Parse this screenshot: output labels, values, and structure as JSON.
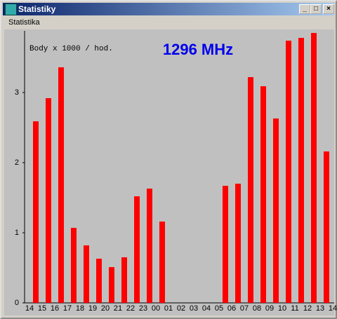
{
  "window": {
    "title": "Statistiky",
    "menu": [
      "Statistika"
    ]
  },
  "chart_data": {
    "type": "bar",
    "annotations": [
      "Body x 1000 / hod.",
      "1296 MHz"
    ],
    "categories": [
      "14",
      "15",
      "16",
      "17",
      "18",
      "19",
      "20",
      "21",
      "22",
      "23",
      "00",
      "01",
      "02",
      "03",
      "04",
      "05",
      "06",
      "07",
      "08",
      "09",
      "10",
      "11",
      "12",
      "13",
      "14"
    ],
    "values": [
      2.59,
      2.92,
      3.36,
      1.07,
      0.82,
      0.63,
      0.51,
      0.65,
      1.52,
      1.63,
      1.16,
      0,
      0,
      0,
      0,
      1.67,
      1.7,
      3.22,
      3.09,
      2.63,
      3.74,
      3.78,
      3.85,
      2.16,
      0
    ],
    "color": "#ff0000",
    "ylim": [
      0,
      3.88
    ],
    "yticks": [
      0,
      1,
      2,
      3
    ],
    "grid": false
  }
}
